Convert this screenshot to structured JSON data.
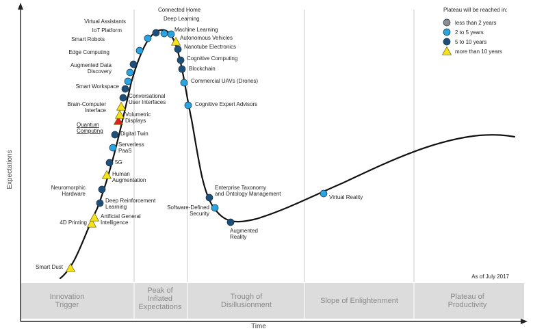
{
  "axes": {
    "y_label": "Expectations",
    "x_label": "Time"
  },
  "as_of": "As of July 2017",
  "phases": [
    {
      "lines": [
        "Innovation",
        "Trigger"
      ]
    },
    {
      "lines": [
        "Peak of",
        "Inflated",
        "Expectations"
      ]
    },
    {
      "lines": [
        "Trough of",
        "Disillusionment"
      ]
    },
    {
      "lines": [
        "Slope of Enlightenment"
      ]
    },
    {
      "lines": [
        "Plateau of",
        "Productivity"
      ]
    }
  ],
  "legend": {
    "title": "Plateau will be reached in:",
    "items": [
      {
        "label": "less than 2 years",
        "marker": "circle",
        "color": "#8c8c8c"
      },
      {
        "label": "2 to 5 years",
        "marker": "circle",
        "color": "#2aa3df"
      },
      {
        "label": "5 to 10 years",
        "marker": "circle",
        "color": "#1f4e79"
      },
      {
        "label": "more than 10 years",
        "marker": "triangle",
        "color": "#f4e21c"
      }
    ]
  },
  "colors": {
    "curve": "#111111",
    "dark_circle": "#1f4e79",
    "light_circle": "#2aa3df",
    "triangle": "#f4e21c",
    "highlight_triangle": "#e02020",
    "highlight_text": "#c00000",
    "phase_band": "#dcdcdc"
  },
  "technologies": [
    {
      "name": [
        "Smart Dust"
      ],
      "plateau": "more than 10 years",
      "highlight": false
    },
    {
      "name": [
        "4D Printing"
      ],
      "plateau": "more than 10 years",
      "highlight": false
    },
    {
      "name": [
        "Artificial General",
        "Intelligence"
      ],
      "plateau": "more than 10 years",
      "highlight": false
    },
    {
      "name": [
        "Deep Reinforcement",
        "Learning"
      ],
      "plateau": "5 to 10 years",
      "highlight": false
    },
    {
      "name": [
        "Neuromorphic",
        "Hardware"
      ],
      "plateau": "5 to 10 years",
      "highlight": false
    },
    {
      "name": [
        "Human",
        "Augmentation"
      ],
      "plateau": "more than 10 years",
      "highlight": false
    },
    {
      "name": [
        "5G"
      ],
      "plateau": "5 to 10 years",
      "highlight": false
    },
    {
      "name": [
        "Serverless",
        "PaaS"
      ],
      "plateau": "2 to 5 years",
      "highlight": false
    },
    {
      "name": [
        "Digital Twin"
      ],
      "plateau": "5 to 10 years",
      "highlight": false
    },
    {
      "name": [
        "Quantum",
        "Computing"
      ],
      "plateau": "more than 10 years",
      "highlight": true
    },
    {
      "name": [
        "Volumetric",
        "Displays"
      ],
      "plateau": "more than 10 years",
      "highlight": false
    },
    {
      "name": [
        "Brain-Computer",
        "Interface"
      ],
      "plateau": "more than 10 years",
      "highlight": false
    },
    {
      "name": [
        "Conversational",
        "User Interfaces"
      ],
      "plateau": "5 to 10 years",
      "highlight": false
    },
    {
      "name": [
        "Smart Workspace"
      ],
      "plateau": "5 to 10 years",
      "highlight": false
    },
    {
      "name": [
        "Augmented Data",
        "Discovery"
      ],
      "plateau": "2 to 5 years",
      "highlight": false
    },
    {
      "name": [
        "Edge Computing"
      ],
      "plateau": "2 to 5 years",
      "highlight": false
    },
    {
      "name": [
        "Smart Robots"
      ],
      "plateau": "5 to 10 years",
      "highlight": false
    },
    {
      "name": [
        "IoT Platform"
      ],
      "plateau": "2 to 5 years",
      "highlight": false
    },
    {
      "name": [
        "Virtual Assistants"
      ],
      "plateau": "2 to 5 years",
      "highlight": false
    },
    {
      "name": [
        "Connected Home"
      ],
      "plateau": "5 to 10 years",
      "highlight": false
    },
    {
      "name": [
        "Deep Learning"
      ],
      "plateau": "2 to 5 years",
      "highlight": false
    },
    {
      "name": [
        "Machine Learning"
      ],
      "plateau": "2 to 5 years",
      "highlight": false
    },
    {
      "name": [
        "Autonomous Vehicles"
      ],
      "plateau": "more than 10 years",
      "highlight": false
    },
    {
      "name": [
        "Nanotube Electronics"
      ],
      "plateau": "5 to 10 years",
      "highlight": false
    },
    {
      "name": [
        "Cognitive Computing"
      ],
      "plateau": "5 to 10 years",
      "highlight": false
    },
    {
      "name": [
        "Blockchain"
      ],
      "plateau": "5 to 10 years",
      "highlight": false
    },
    {
      "name": [
        "Commercial UAVs (Drones)"
      ],
      "plateau": "2 to 5 years",
      "highlight": false
    },
    {
      "name": [
        "Cognitive Expert Advisors"
      ],
      "plateau": "2 to 5 years",
      "highlight": false
    },
    {
      "name": [
        "Enterprise Taxonomy",
        "and Ontology Management"
      ],
      "plateau": "5 to 10 years",
      "highlight": false
    },
    {
      "name": [
        "Software-Defined",
        "Security"
      ],
      "plateau": "2 to 5 years",
      "highlight": false
    },
    {
      "name": [
        "Augmented",
        "Reality"
      ],
      "plateau": "5 to 10 years",
      "highlight": false
    },
    {
      "name": [
        "Virtual Reality"
      ],
      "plateau": "2 to 5 years",
      "highlight": false
    }
  ]
}
